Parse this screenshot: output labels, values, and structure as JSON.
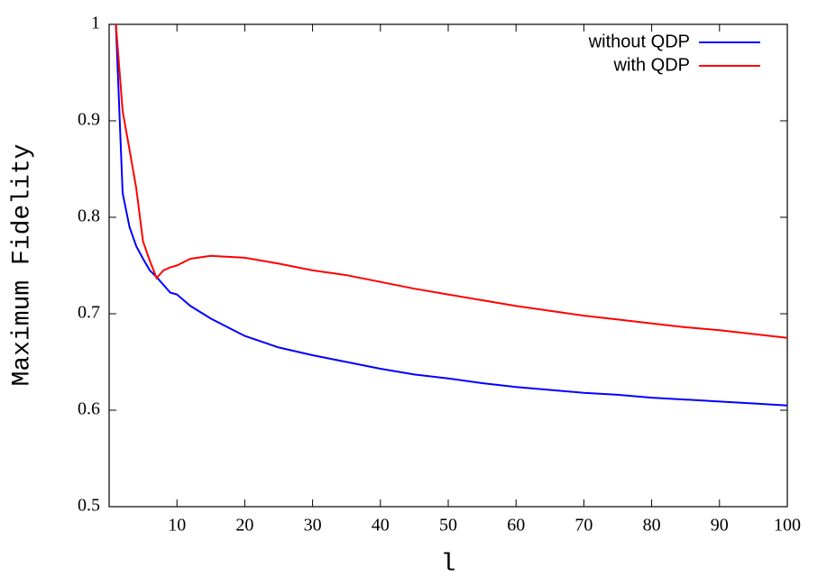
{
  "chart_data": {
    "type": "line",
    "xlabel": "l",
    "ylabel": "Maximum Fidelity",
    "x": [
      1,
      2,
      3,
      4,
      5,
      6,
      7,
      8,
      9,
      10,
      12,
      15,
      20,
      25,
      30,
      35,
      40,
      45,
      50,
      55,
      60,
      65,
      70,
      75,
      80,
      85,
      90,
      95,
      100
    ],
    "series": [
      {
        "name": "without QDP",
        "color": "#0000ff",
        "values": [
          1.0,
          0.825,
          0.79,
          0.77,
          0.757,
          0.745,
          0.738,
          0.73,
          0.722,
          0.72,
          0.708,
          0.695,
          0.677,
          0.665,
          0.657,
          0.65,
          0.643,
          0.637,
          0.633,
          0.628,
          0.624,
          0.621,
          0.618,
          0.616,
          0.613,
          0.611,
          0.609,
          0.607,
          0.605
        ]
      },
      {
        "name": "with QDP",
        "color": "#ff0000",
        "values": [
          1.0,
          0.91,
          0.87,
          0.83,
          0.775,
          0.755,
          0.737,
          0.745,
          0.748,
          0.75,
          0.757,
          0.76,
          0.758,
          0.752,
          0.745,
          0.74,
          0.733,
          0.726,
          0.72,
          0.714,
          0.708,
          0.703,
          0.698,
          0.694,
          0.69,
          0.686,
          0.683,
          0.679,
          0.675
        ]
      }
    ],
    "xlim": [
      0,
      100
    ],
    "xticks": [
      10,
      20,
      30,
      40,
      50,
      60,
      70,
      80,
      90,
      100
    ],
    "ylim": [
      0.5,
      1
    ],
    "yticks": [
      0.5,
      0.6,
      0.7,
      0.8,
      0.9,
      1
    ],
    "legend": "upper right"
  }
}
